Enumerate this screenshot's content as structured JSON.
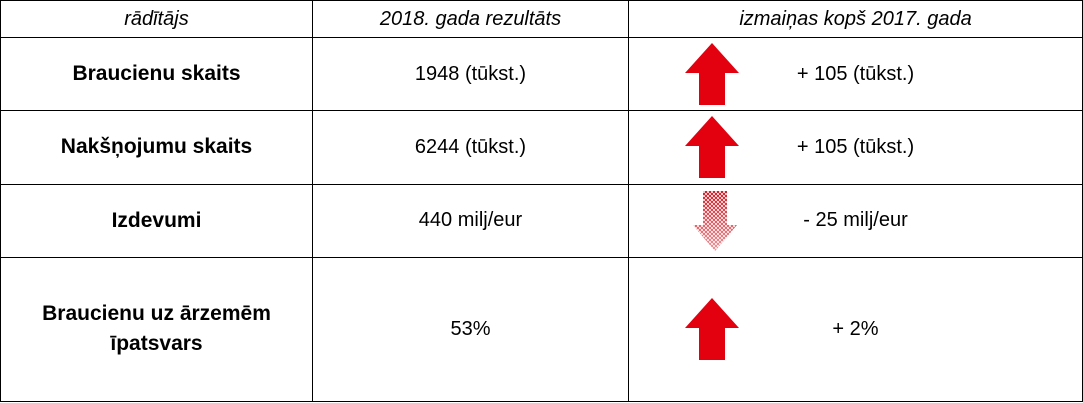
{
  "table": {
    "header": [
      "rādītājs",
      "2018. gada rezultāts",
      "izmaiņas kopš 2017. gada"
    ],
    "rows": [
      [
        "Braucienu skaits",
        "1948 (tūkst.)",
        "+ 105 (tūkst.)"
      ],
      [
        "Nakšņojumu skaits",
        "6244 (tūkst.)",
        "+ 105 (tūkst.)"
      ],
      [
        "Izdevumi",
        "440 milj/eur",
        "- 25 milj/eur"
      ],
      [
        "Braucienu uz ārzemēm īpatsvars",
        "53%",
        "+ 2%"
      ]
    ]
  }
}
